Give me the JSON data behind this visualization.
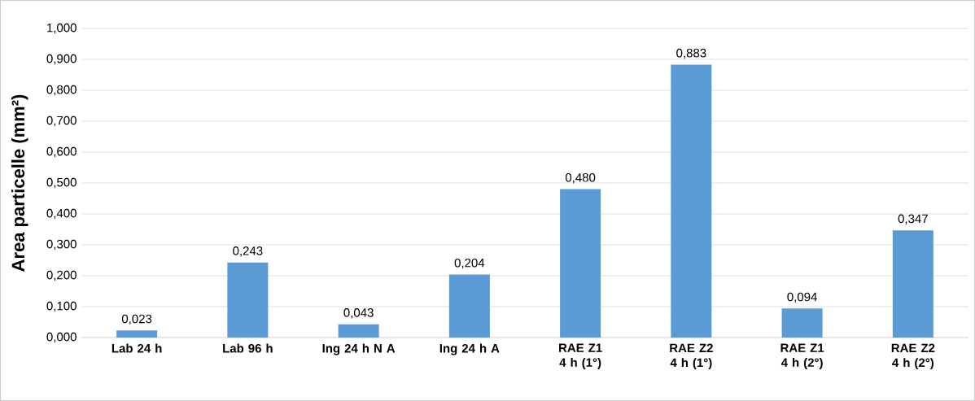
{
  "chart_data": {
    "type": "bar",
    "ylabel": "Area particelle (mm²)",
    "categories": [
      "Lab 24 h",
      "Lab 96 h",
      "Ing 24 h N A",
      "Ing 24 h A",
      "RAE Z1 4 h (1°)",
      "RAE Z2 4 h (1°)",
      "RAE Z1 4 h (2°)",
      "RAE Z2 4 h (2°)"
    ],
    "values": [
      0.023,
      0.243,
      0.043,
      0.204,
      0.48,
      0.883,
      0.094,
      0.347
    ],
    "value_labels": [
      "0,023",
      "0,243",
      "0,043",
      "0,204",
      "0,480",
      "0,883",
      "0,094",
      "0,347"
    ],
    "color": "#5b9bd5",
    "ylim": [
      0,
      1.0
    ],
    "yticks": [
      {
        "value": 0,
        "label": "0,000"
      },
      {
        "value": 0.1,
        "label": "0,100"
      },
      {
        "value": 0.2,
        "label": "0,200"
      },
      {
        "value": 0.3,
        "label": "0,300"
      },
      {
        "value": 0.4,
        "label": "0,400"
      },
      {
        "value": 0.5,
        "label": "0,500"
      },
      {
        "value": 0.6,
        "label": "0,600"
      },
      {
        "value": 0.7,
        "label": "0,700"
      },
      {
        "value": 0.8,
        "label": "0,800"
      },
      {
        "value": 0.9,
        "label": "0,900"
      },
      {
        "value": 1.0,
        "label": "1,000"
      }
    ],
    "grid": "y"
  }
}
